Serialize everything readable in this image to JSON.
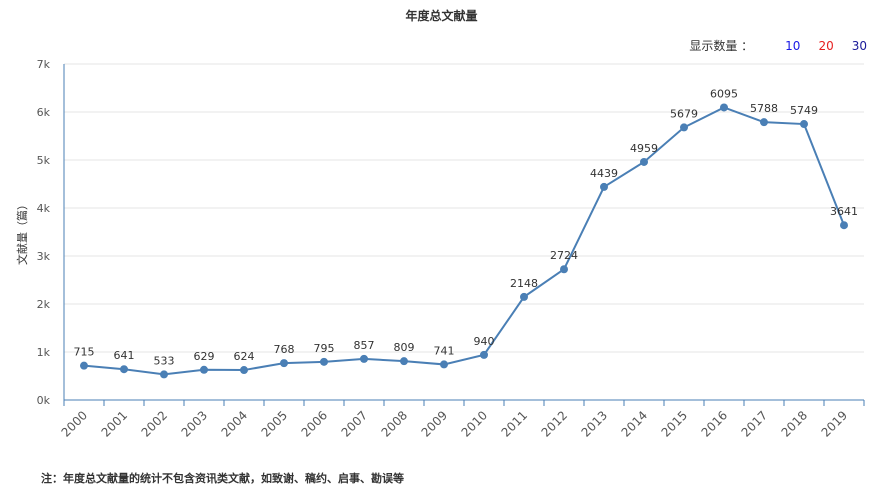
{
  "page": {
    "title": "年度总文献量",
    "count_switch": {
      "label": "显示数量 ：",
      "options": [
        {
          "label": "10",
          "color": "#1a1ae6"
        },
        {
          "label": "20",
          "color": "#e62020"
        },
        {
          "label": "30",
          "color": "#1a1a99"
        }
      ]
    },
    "footnote": "注：年度总文献量的统计不包含资讯类文献，如致谢、稿约、启事、勘误等"
  },
  "chart_data": {
    "type": "line",
    "title": "年度总文献量",
    "ylabel": "文献量（篇）",
    "xlabel": "",
    "categories": [
      "2000",
      "2001",
      "2002",
      "2003",
      "2004",
      "2005",
      "2006",
      "2007",
      "2008",
      "2009",
      "2010",
      "2011",
      "2012",
      "2013",
      "2014",
      "2015",
      "2016",
      "2017",
      "2018",
      "2019"
    ],
    "series": [
      {
        "values": [
          715,
          641,
          533,
          629,
          624,
          768,
          795,
          857,
          809,
          741,
          940,
          2148,
          2724,
          4439,
          4959,
          5679,
          6095,
          5788,
          5749,
          3641
        ],
        "color": "#4a7fb5"
      }
    ],
    "ylim": [
      0,
      7000
    ],
    "yticks": [
      0,
      1000,
      2000,
      3000,
      4000,
      5000,
      6000,
      7000
    ],
    "ytick_labels": [
      "0k",
      "1k",
      "2k",
      "3k",
      "4k",
      "5k",
      "6k",
      "7k"
    ],
    "grid": true,
    "data_labels": true
  }
}
